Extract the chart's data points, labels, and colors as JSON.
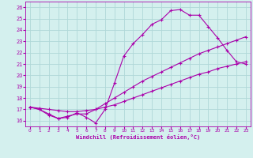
{
  "xlabel": "Windchill (Refroidissement éolien,°C)",
  "bg_color": "#d4f0ee",
  "line_color": "#aa00aa",
  "grid_color": "#b0d8d8",
  "xlim": [
    -0.5,
    23.5
  ],
  "ylim": [
    15.5,
    26.5
  ],
  "xticks": [
    0,
    1,
    2,
    3,
    4,
    5,
    6,
    7,
    8,
    9,
    10,
    11,
    12,
    13,
    14,
    15,
    16,
    17,
    18,
    19,
    20,
    21,
    22,
    23
  ],
  "yticks": [
    16,
    17,
    18,
    19,
    20,
    21,
    22,
    23,
    24,
    25,
    26
  ],
  "curve1_x": [
    0,
    1,
    2,
    3,
    4,
    5,
    6,
    7,
    8,
    9,
    10,
    11,
    12,
    13,
    14,
    15,
    16,
    17,
    18,
    19,
    20,
    21,
    22,
    23
  ],
  "curve1_y": [
    17.2,
    17.0,
    16.6,
    16.2,
    16.3,
    16.7,
    16.3,
    15.8,
    17.0,
    19.3,
    21.7,
    22.8,
    23.6,
    24.5,
    24.9,
    25.7,
    25.8,
    25.3,
    25.3,
    24.3,
    23.3,
    22.2,
    21.2,
    21.0
  ],
  "curve2_x": [
    0,
    1,
    2,
    3,
    4,
    5,
    6,
    7,
    8,
    9,
    10,
    11,
    12,
    13,
    14,
    15,
    16,
    17,
    18,
    19,
    20,
    21,
    22,
    23
  ],
  "curve2_y": [
    17.2,
    17.0,
    16.5,
    16.2,
    16.4,
    16.6,
    16.6,
    17.0,
    17.5,
    18.0,
    18.5,
    19.0,
    19.5,
    19.9,
    20.3,
    20.7,
    21.1,
    21.5,
    21.9,
    22.2,
    22.5,
    22.8,
    23.1,
    23.4
  ],
  "curve3_x": [
    0,
    1,
    2,
    3,
    4,
    5,
    6,
    7,
    8,
    9,
    10,
    11,
    12,
    13,
    14,
    15,
    16,
    17,
    18,
    19,
    20,
    21,
    22,
    23
  ],
  "curve3_y": [
    17.2,
    17.1,
    17.0,
    16.9,
    16.8,
    16.8,
    16.9,
    17.0,
    17.2,
    17.4,
    17.7,
    18.0,
    18.3,
    18.6,
    18.9,
    19.2,
    19.5,
    19.8,
    20.1,
    20.3,
    20.6,
    20.8,
    21.0,
    21.2
  ]
}
